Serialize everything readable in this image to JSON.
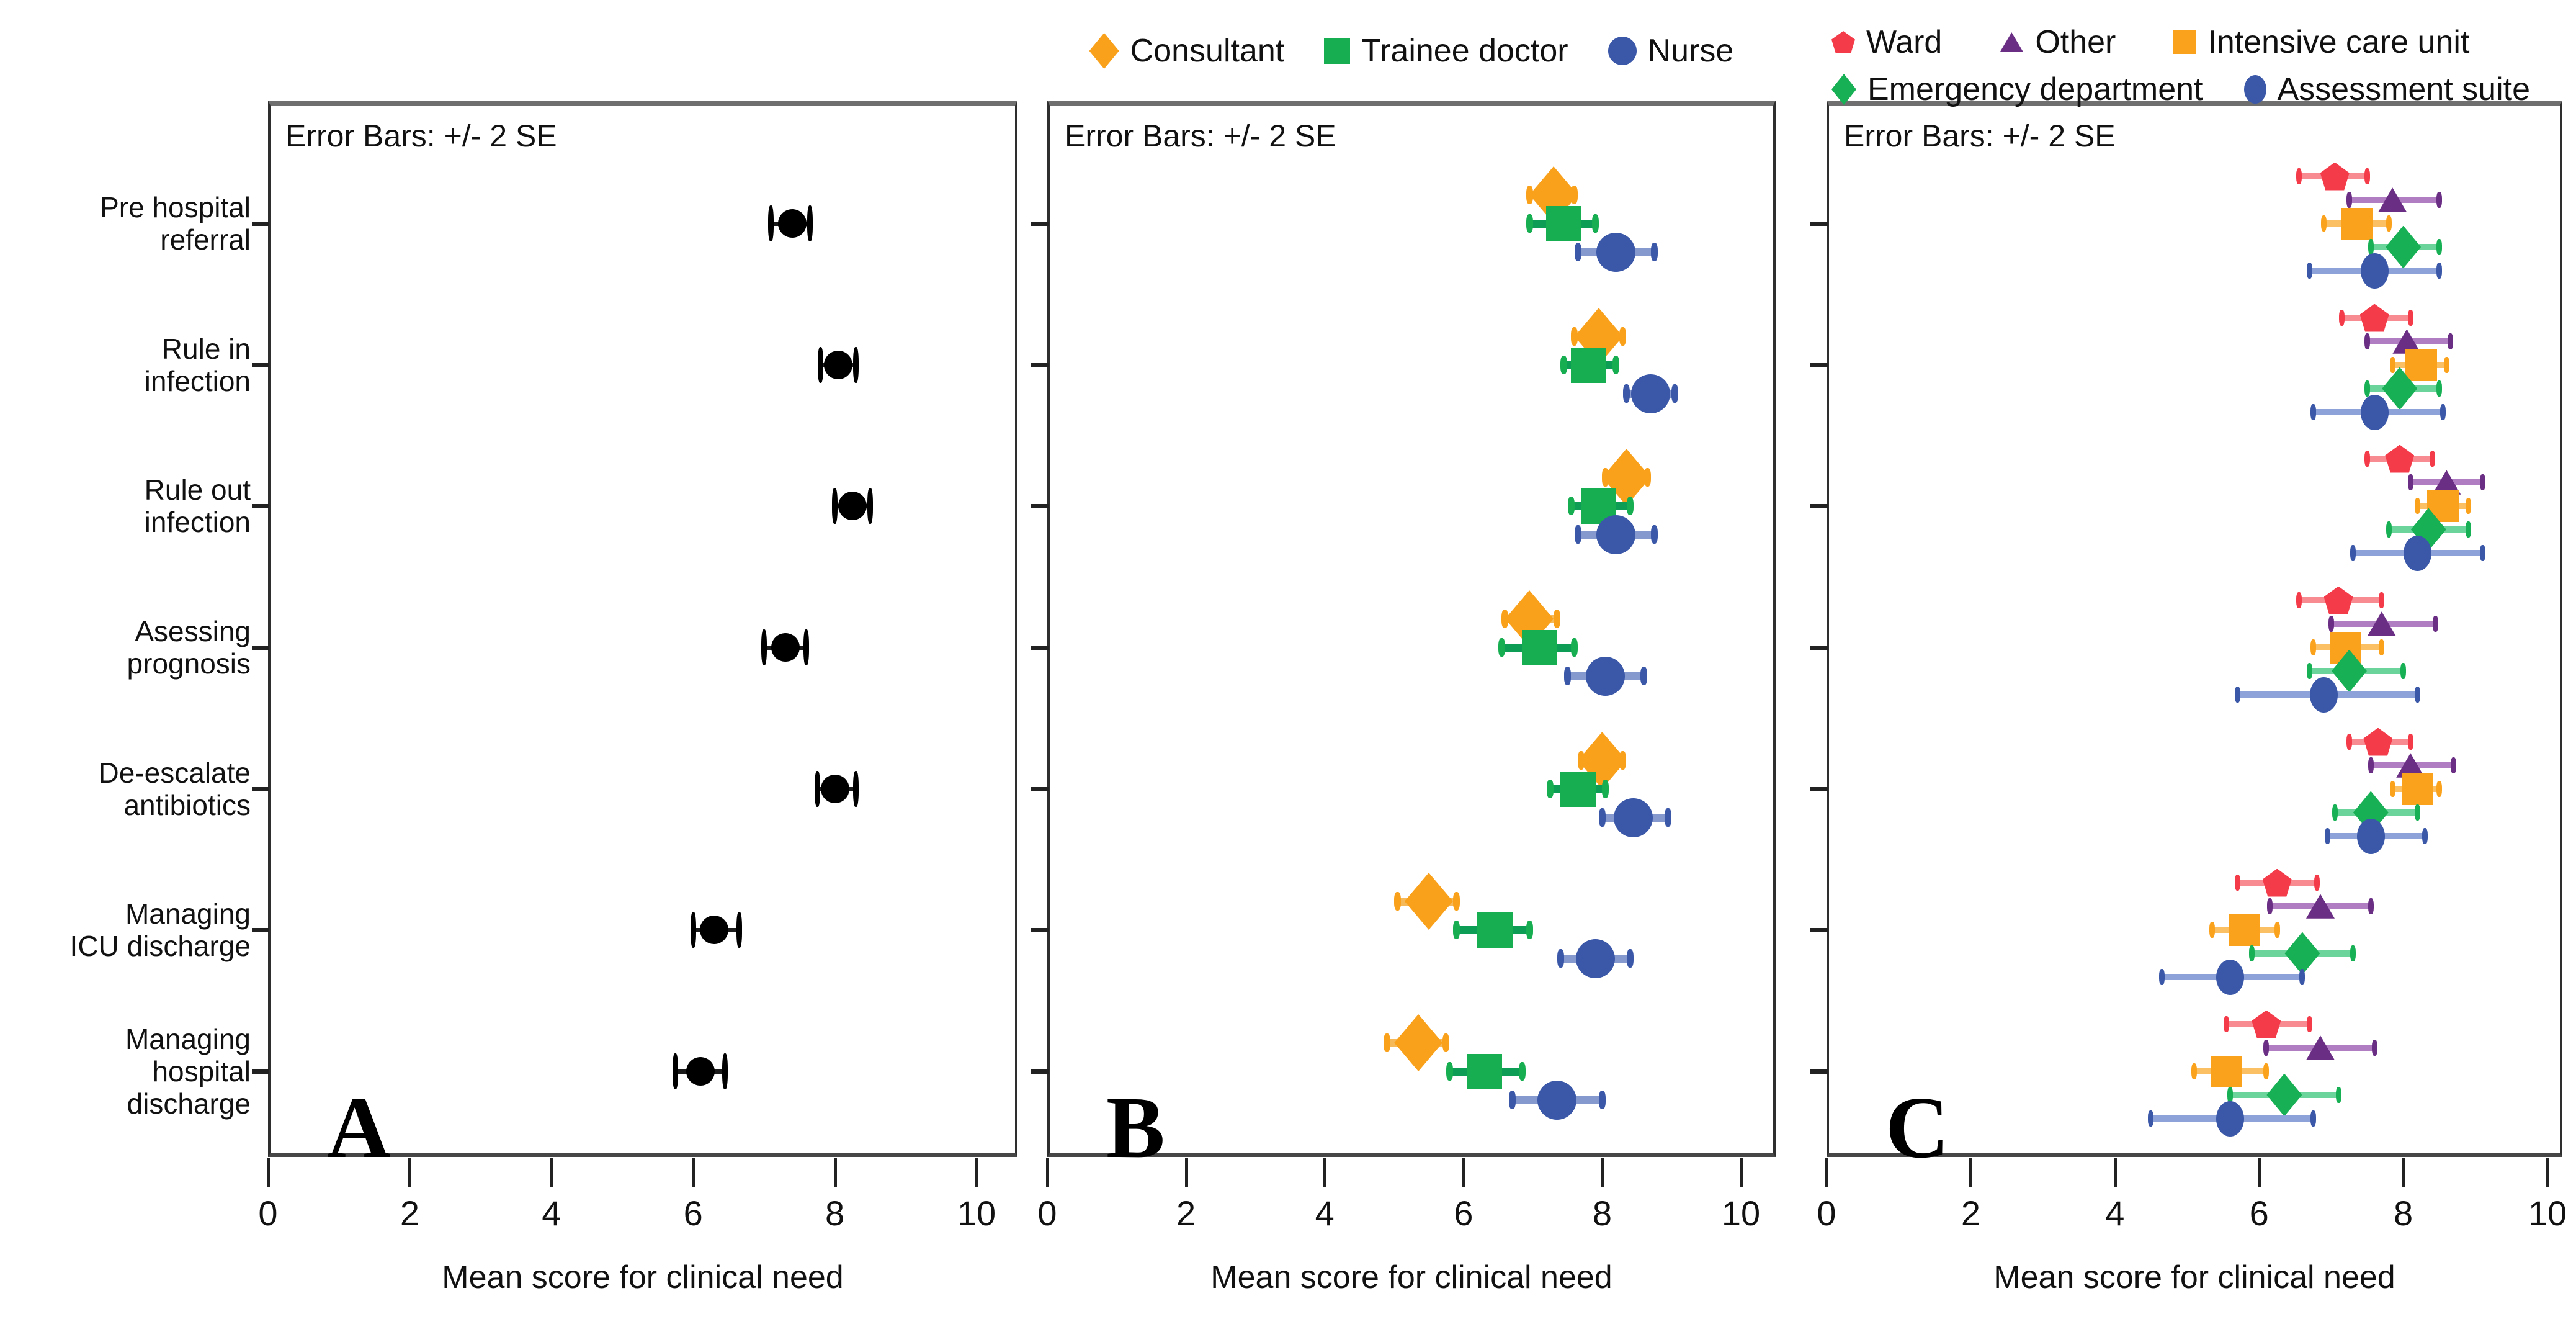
{
  "chart_data": {
    "type": "scatter",
    "subtype": "horizontal-dot-plot-with-error-bars",
    "error_bars_note": "Error Bars: +/- 2 SE",
    "xlabel": "Mean score for clinical need",
    "x_ticks": [
      0,
      2,
      4,
      6,
      8,
      10
    ],
    "xlim": [
      0,
      10.5
    ],
    "grid": false,
    "categories": [
      [
        "Pre hospital",
        "referral"
      ],
      [
        "Rule in",
        "infection"
      ],
      [
        "Rule out",
        "infection"
      ],
      [
        "Asessing",
        "prognosis"
      ],
      [
        "De-escalate",
        "antibiotics"
      ],
      [
        "Managing",
        "ICU discharge"
      ],
      [
        "Managing",
        "hospital",
        "discharge"
      ]
    ],
    "panels": [
      {
        "label": "A",
        "legend_position": "none",
        "series": [
          {
            "name": "",
            "marker": "circle",
            "color": "#000000",
            "bar_color": "#1a1a1a",
            "values": [
              [
                7.4,
                7.1,
                7.65
              ],
              [
                8.05,
                7.8,
                8.3
              ],
              [
                8.25,
                8.0,
                8.5
              ],
              [
                7.3,
                7.0,
                7.6
              ],
              [
                8.0,
                7.75,
                8.3
              ],
              [
                6.3,
                6.0,
                6.65
              ],
              [
                6.1,
                5.75,
                6.45
              ]
            ]
          }
        ]
      },
      {
        "label": "B",
        "legend_position": "top",
        "series": [
          {
            "name": "Consultant",
            "marker": "diamond",
            "color": "#F9A11B",
            "bar_color": "#F6B95A",
            "values": [
              [
                7.3,
                6.95,
                7.6
              ],
              [
                7.95,
                7.6,
                8.3
              ],
              [
                8.35,
                8.05,
                8.65
              ],
              [
                6.95,
                6.6,
                7.35
              ],
              [
                8.0,
                7.7,
                8.3
              ],
              [
                5.5,
                5.05,
                5.9
              ],
              [
                5.35,
                4.9,
                5.75
              ]
            ]
          },
          {
            "name": "Trainee doctor",
            "marker": "square",
            "color": "#17AE51",
            "bar_color": "#0E9D55",
            "values": [
              [
                7.45,
                6.95,
                7.9
              ],
              [
                7.8,
                7.45,
                8.2
              ],
              [
                7.95,
                7.55,
                8.4
              ],
              [
                7.1,
                6.55,
                7.6
              ],
              [
                7.65,
                7.25,
                8.05
              ],
              [
                6.45,
                5.9,
                6.95
              ],
              [
                6.3,
                5.8,
                6.85
              ]
            ]
          },
          {
            "name": "Nurse",
            "marker": "circle",
            "color": "#3A57A8",
            "bar_color": "#8599CE",
            "values": [
              [
                8.2,
                7.65,
                8.75
              ],
              [
                8.7,
                8.35,
                9.05
              ],
              [
                8.2,
                7.65,
                8.75
              ],
              [
                8.05,
                7.5,
                8.6
              ],
              [
                8.45,
                8.0,
                8.95
              ],
              [
                7.9,
                7.4,
                8.4
              ],
              [
                7.35,
                6.7,
                8.0
              ]
            ]
          }
        ]
      },
      {
        "label": "C",
        "legend_position": "top-two-rows",
        "series": [
          {
            "name": "Ward",
            "marker": "pentagon",
            "color": "#F43B4A",
            "bar_color": "#F88A92",
            "values": [
              [
                7.05,
                6.55,
                7.5
              ],
              [
                7.6,
                7.15,
                8.1
              ],
              [
                7.95,
                7.5,
                8.4
              ],
              [
                7.1,
                6.55,
                7.7
              ],
              [
                7.65,
                7.25,
                8.1
              ],
              [
                6.25,
                5.7,
                6.8
              ],
              [
                6.1,
                5.55,
                6.7
              ]
            ]
          },
          {
            "name": "Other",
            "marker": "triangle",
            "color": "#6B2E85",
            "bar_color": "#B07CC2",
            "values": [
              [
                7.85,
                7.25,
                8.5
              ],
              [
                8.05,
                7.5,
                8.65
              ],
              [
                8.6,
                8.1,
                9.1
              ],
              [
                7.7,
                7.0,
                8.45
              ],
              [
                8.1,
                7.55,
                8.7
              ],
              [
                6.85,
                6.15,
                7.55
              ],
              [
                6.85,
                6.1,
                7.6
              ]
            ]
          },
          {
            "name": "Intensive care unit",
            "marker": "square",
            "color": "#FBA21C",
            "bar_color": "#FCC064",
            "values": [
              [
                7.35,
                6.9,
                7.8
              ],
              [
                8.25,
                7.85,
                8.6
              ],
              [
                8.55,
                8.2,
                8.9
              ],
              [
                7.2,
                6.75,
                7.7
              ],
              [
                8.2,
                7.85,
                8.5
              ],
              [
                5.8,
                5.35,
                6.25
              ],
              [
                5.55,
                5.1,
                6.1
              ]
            ]
          },
          {
            "name": "Emergency department",
            "marker": "diamond",
            "color": "#17B054",
            "bar_color": "#6BD49B",
            "values": [
              [
                8.0,
                7.55,
                8.5
              ],
              [
                7.95,
                7.5,
                8.5
              ],
              [
                8.35,
                7.8,
                8.9
              ],
              [
                7.25,
                6.7,
                8.0
              ],
              [
                7.55,
                7.05,
                8.2
              ],
              [
                6.6,
                5.9,
                7.3
              ],
              [
                6.35,
                5.6,
                7.1
              ]
            ]
          },
          {
            "name": "Assessment suite",
            "marker": "ellipse",
            "color": "#3A57A8",
            "bar_color": "#8CA2D8",
            "values": [
              [
                7.6,
                6.7,
                8.5
              ],
              [
                7.6,
                6.75,
                8.55
              ],
              [
                8.2,
                7.3,
                9.1
              ],
              [
                6.9,
                5.7,
                8.2
              ],
              [
                7.55,
                6.95,
                8.3
              ],
              [
                5.6,
                4.65,
                6.6
              ],
              [
                5.6,
                4.5,
                6.75
              ]
            ]
          }
        ]
      }
    ]
  }
}
